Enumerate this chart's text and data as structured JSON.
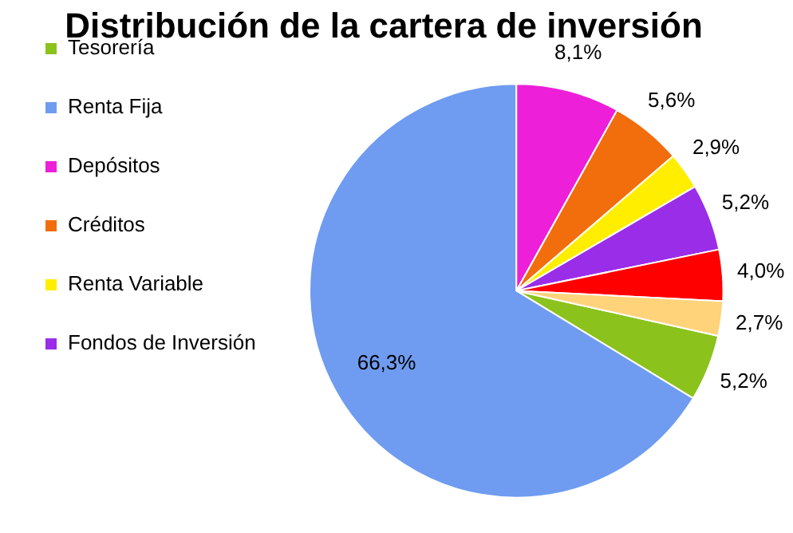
{
  "chart_data": {
    "type": "pie",
    "title": "Distribución de la cartera de inversión",
    "categories": [
      "Tesorería",
      "Renta Fija",
      "Depósitos",
      "Créditos",
      "Renta Variable",
      "Fondos de Inversión",
      null,
      null
    ],
    "values": [
      5.2,
      66.3,
      8.1,
      5.6,
      2.9,
      5.2,
      4.0,
      2.7
    ],
    "value_labels": [
      "5,2%",
      "66,3%",
      "8,1%",
      "5,6%",
      "2,9%",
      "5,2%",
      "4,0%",
      "2,7%"
    ],
    "colors": [
      "#8cc21c",
      "#6f9cf0",
      "#ee1fd8",
      "#f26d0c",
      "#ffee00",
      "#9a2de8",
      "#ff0000",
      "#ffd37a"
    ],
    "legend": "left"
  }
}
